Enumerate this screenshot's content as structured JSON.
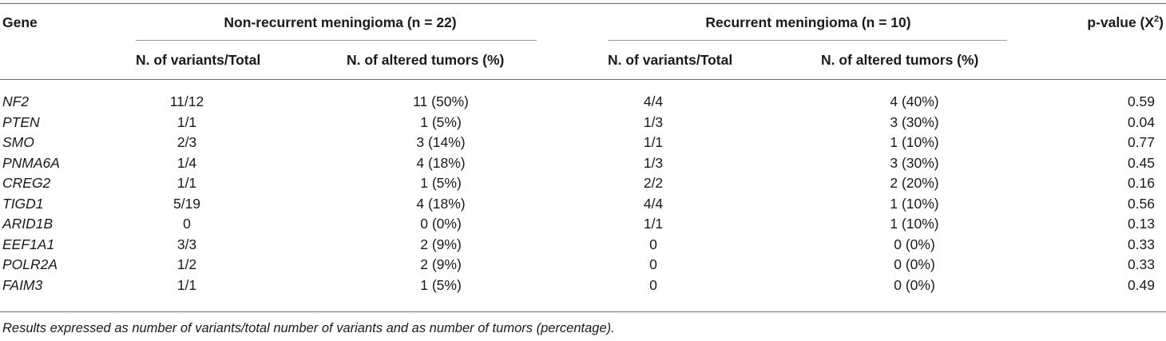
{
  "header": {
    "gene": "Gene",
    "group1": "Non-recurrent meningioma (n = 22)",
    "group2": "Recurrent meningioma (n = 10)",
    "pvalue_prefix": "p-value (X",
    "pvalue_sup": "2",
    "pvalue_suffix": ")",
    "sub_variants": "N. of variants/Total",
    "sub_altered": "N. of altered tumors (%)"
  },
  "rows": [
    {
      "gene": "NF2",
      "nr_variants": "11/12",
      "nr_altered": "11 (50%)",
      "r_variants": "4/4",
      "r_altered": "4 (40%)",
      "p": "0.59"
    },
    {
      "gene": "PTEN",
      "nr_variants": "1/1",
      "nr_altered": "1 (5%)",
      "r_variants": "1/3",
      "r_altered": "3 (30%)",
      "p": "0.04"
    },
    {
      "gene": "SMO",
      "nr_variants": "2/3",
      "nr_altered": "3 (14%)",
      "r_variants": "1/1",
      "r_altered": "1 (10%)",
      "p": "0.77"
    },
    {
      "gene": "PNMA6A",
      "nr_variants": "1/4",
      "nr_altered": "4 (18%)",
      "r_variants": "1/3",
      "r_altered": "3 (30%)",
      "p": "0.45"
    },
    {
      "gene": "CREG2",
      "nr_variants": "1/1",
      "nr_altered": "1 (5%)",
      "r_variants": "2/2",
      "r_altered": "2 (20%)",
      "p": "0.16"
    },
    {
      "gene": "TIGD1",
      "nr_variants": "5/19",
      "nr_altered": "4 (18%)",
      "r_variants": "4/4",
      "r_altered": "1 (10%)",
      "p": "0.56"
    },
    {
      "gene": "ARID1B",
      "nr_variants": "0",
      "nr_altered": "0 (0%)",
      "r_variants": "1/1",
      "r_altered": "1 (10%)",
      "p": "0.13"
    },
    {
      "gene": "EEF1A1",
      "nr_variants": "3/3",
      "nr_altered": "2 (9%)",
      "r_variants": "0",
      "r_altered": "0 (0%)",
      "p": "0.33"
    },
    {
      "gene": "POLR2A",
      "nr_variants": "1/2",
      "nr_altered": "2 (9%)",
      "r_variants": "0",
      "r_altered": "0 (0%)",
      "p": "0.33"
    },
    {
      "gene": "FAIM3",
      "nr_variants": "1/1",
      "nr_altered": "1 (5%)",
      "r_variants": "0",
      "r_altered": "0 (0%)",
      "p": "0.49"
    }
  ],
  "footnote": "Results expressed as number of variants/total number of variants and as number of tumors (percentage)."
}
